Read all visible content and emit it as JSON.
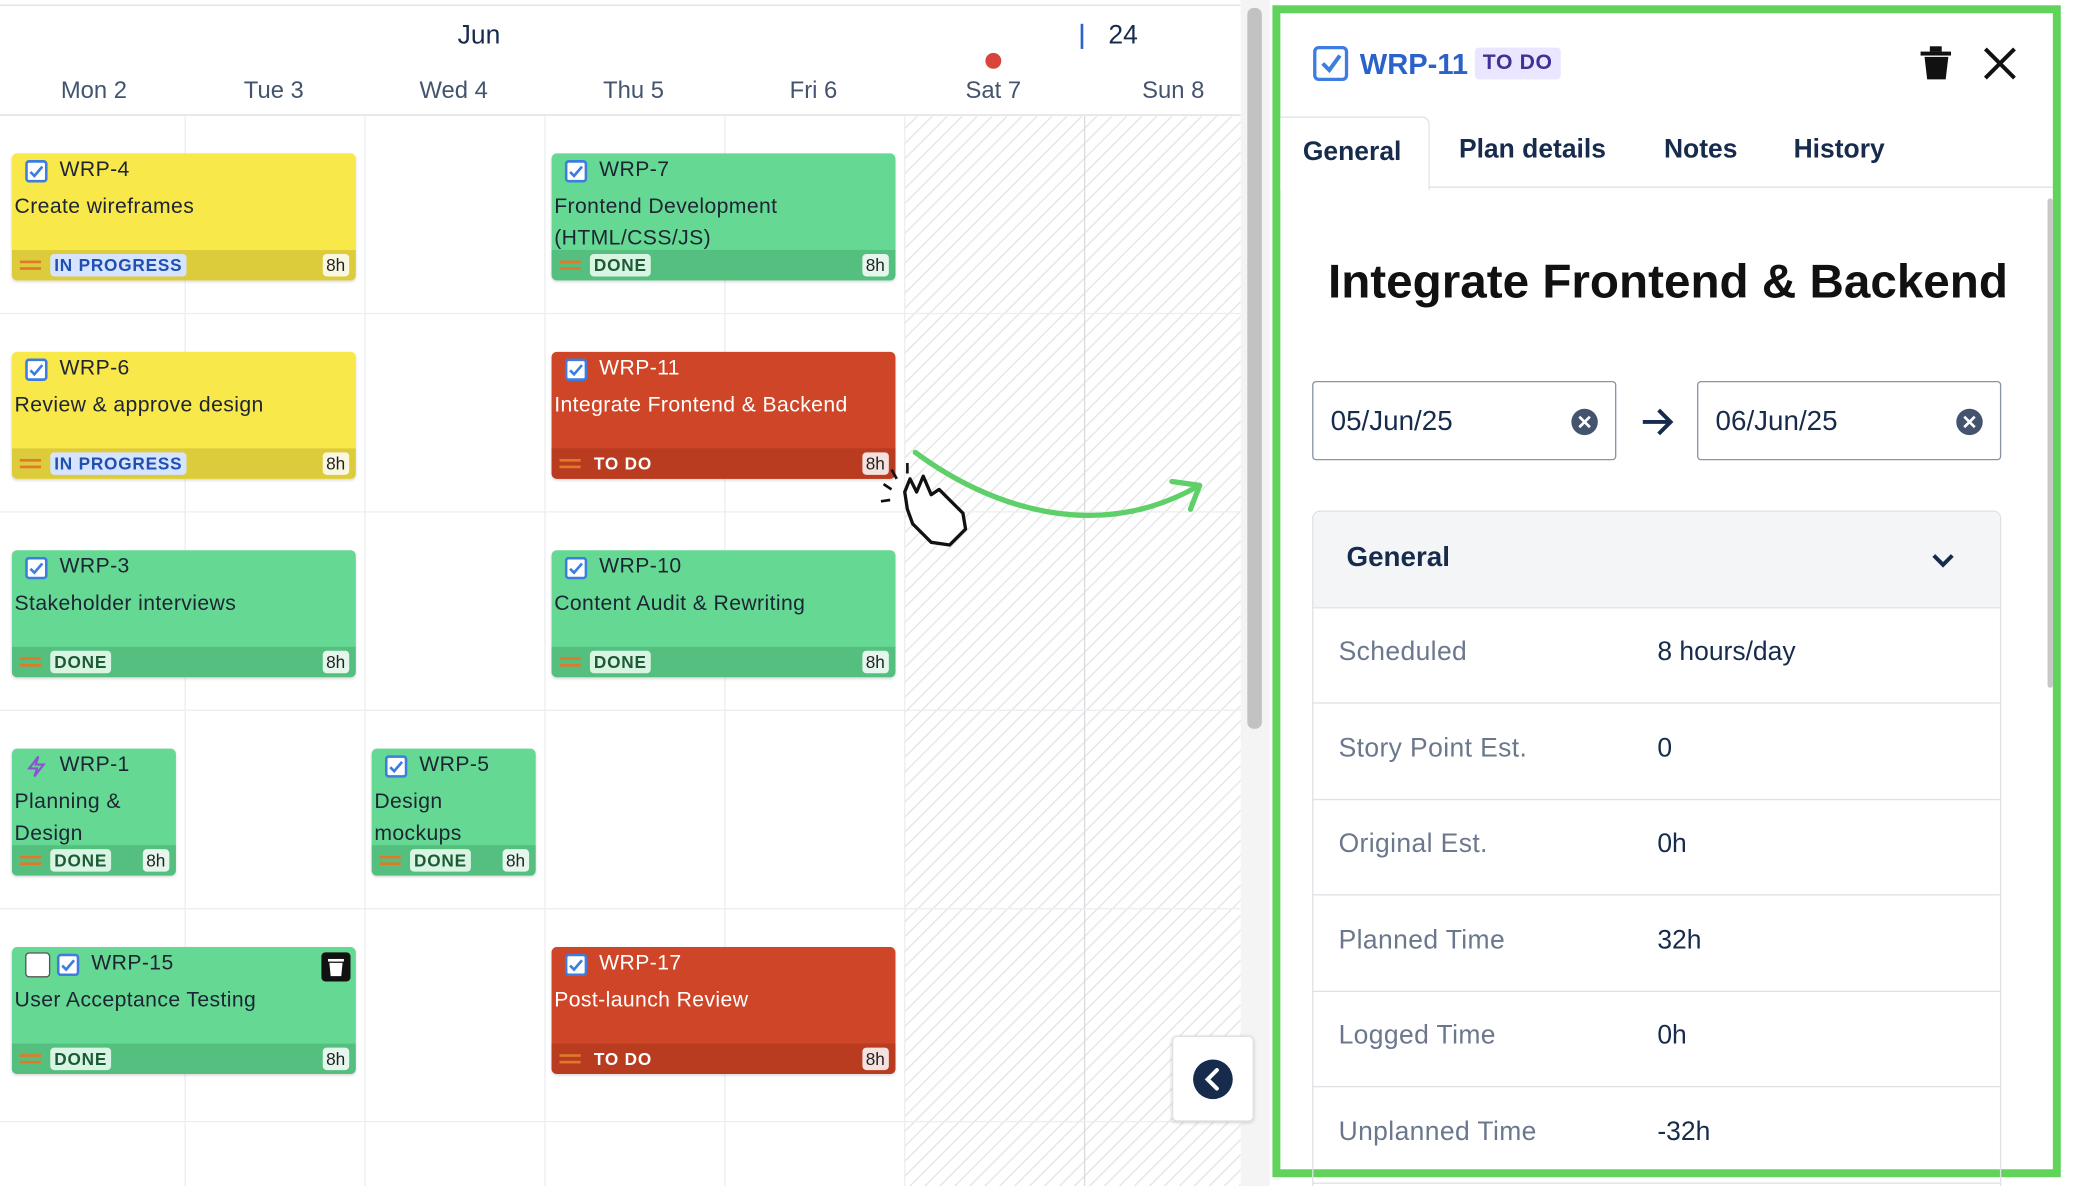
{
  "calendar": {
    "month": "Jun",
    "week": "24",
    "days": [
      "Mon 2",
      "Tue 3",
      "Wed 4",
      "Thu 5",
      "Fri 6",
      "Sat 7",
      "Sun 8"
    ]
  },
  "tasks": [
    {
      "key": "WRP-4",
      "title": "Create wireframes",
      "status": "IN PROGRESS",
      "hours": "8h"
    },
    {
      "key": "WRP-7",
      "title": "Frontend Development (HTML/CSS/JS)",
      "status": "DONE",
      "hours": "8h"
    },
    {
      "key": "WRP-6",
      "title": "Review & approve design",
      "status": "IN PROGRESS",
      "hours": "8h"
    },
    {
      "key": "WRP-11",
      "title": "Integrate Frontend & Backend",
      "status": "TO DO",
      "hours": "8h"
    },
    {
      "key": "WRP-3",
      "title": "Stakeholder interviews",
      "status": "DONE",
      "hours": "8h"
    },
    {
      "key": "WRP-10",
      "title": "Content Audit & Rewriting",
      "status": "DONE",
      "hours": "8h"
    },
    {
      "key": "WRP-1",
      "title": "Planning & Design",
      "status": "DONE",
      "hours": "8h"
    },
    {
      "key": "WRP-5",
      "title": "Design mockups",
      "status": "DONE",
      "hours": "8h"
    },
    {
      "key": "WRP-15",
      "title": "User Acceptance Testing",
      "status": "DONE",
      "hours": "8h"
    },
    {
      "key": "WRP-17",
      "title": "Post-launch Review",
      "status": "TO DO",
      "hours": "8h"
    }
  ],
  "panel": {
    "key": "WRP-11",
    "status": "TO DO",
    "tabs": [
      "General",
      "Plan details",
      "Notes",
      "History"
    ],
    "title": "Integrate Frontend & Backend",
    "start_date": "05/Jun/25",
    "end_date": "06/Jun/25",
    "section": "General",
    "fields": [
      {
        "label": "Scheduled",
        "value": "8 hours/day"
      },
      {
        "label": "Story Point Est.",
        "value": "0"
      },
      {
        "label": "Original Est.",
        "value": "0h"
      },
      {
        "label": "Planned Time",
        "value": "32h"
      },
      {
        "label": "Logged Time",
        "value": "0h"
      },
      {
        "label": "Unplanned Time",
        "value": "-32h"
      }
    ]
  }
}
